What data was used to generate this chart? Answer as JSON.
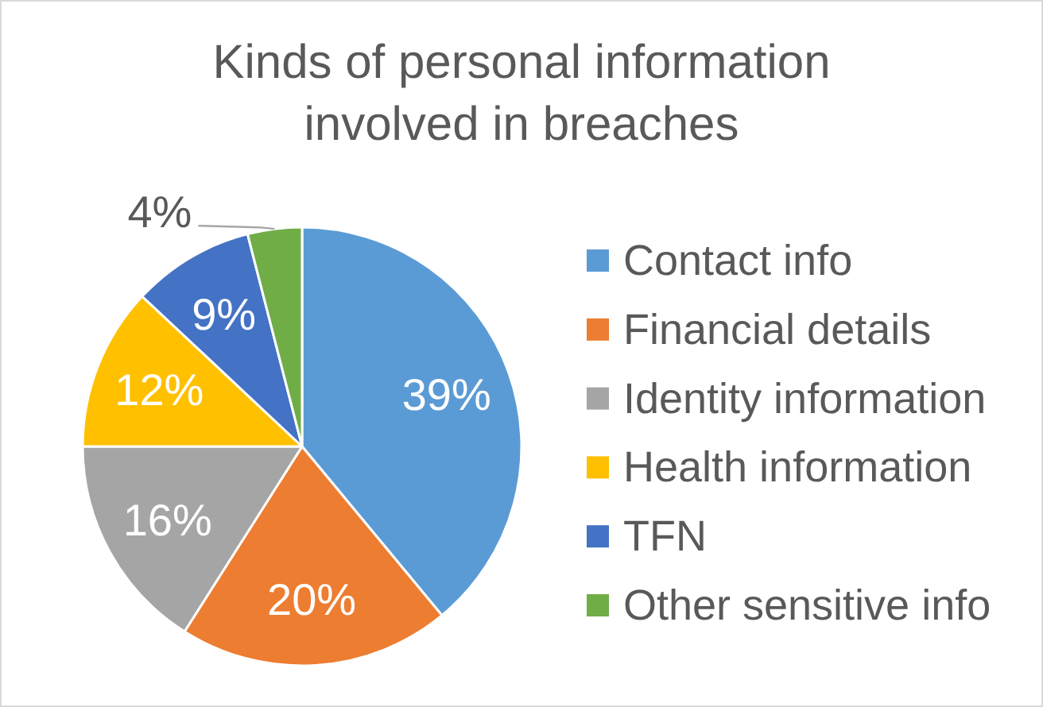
{
  "chart_data": {
    "type": "pie",
    "title": "Kinds of personal information involved in breaches",
    "categories": [
      "Contact info",
      "Financial details",
      "Identity information",
      "Health information",
      "TFN",
      "Other sensitive info"
    ],
    "values": [
      39,
      20,
      16,
      12,
      9,
      4
    ],
    "colors": [
      "#5b9bd5",
      "#ed7d31",
      "#a5a5a5",
      "#ffc000",
      "#4472c4",
      "#70ad47"
    ],
    "value_labels": [
      "39%",
      "20%",
      "16%",
      "12%",
      "9%",
      "4%"
    ],
    "legend": "right"
  }
}
